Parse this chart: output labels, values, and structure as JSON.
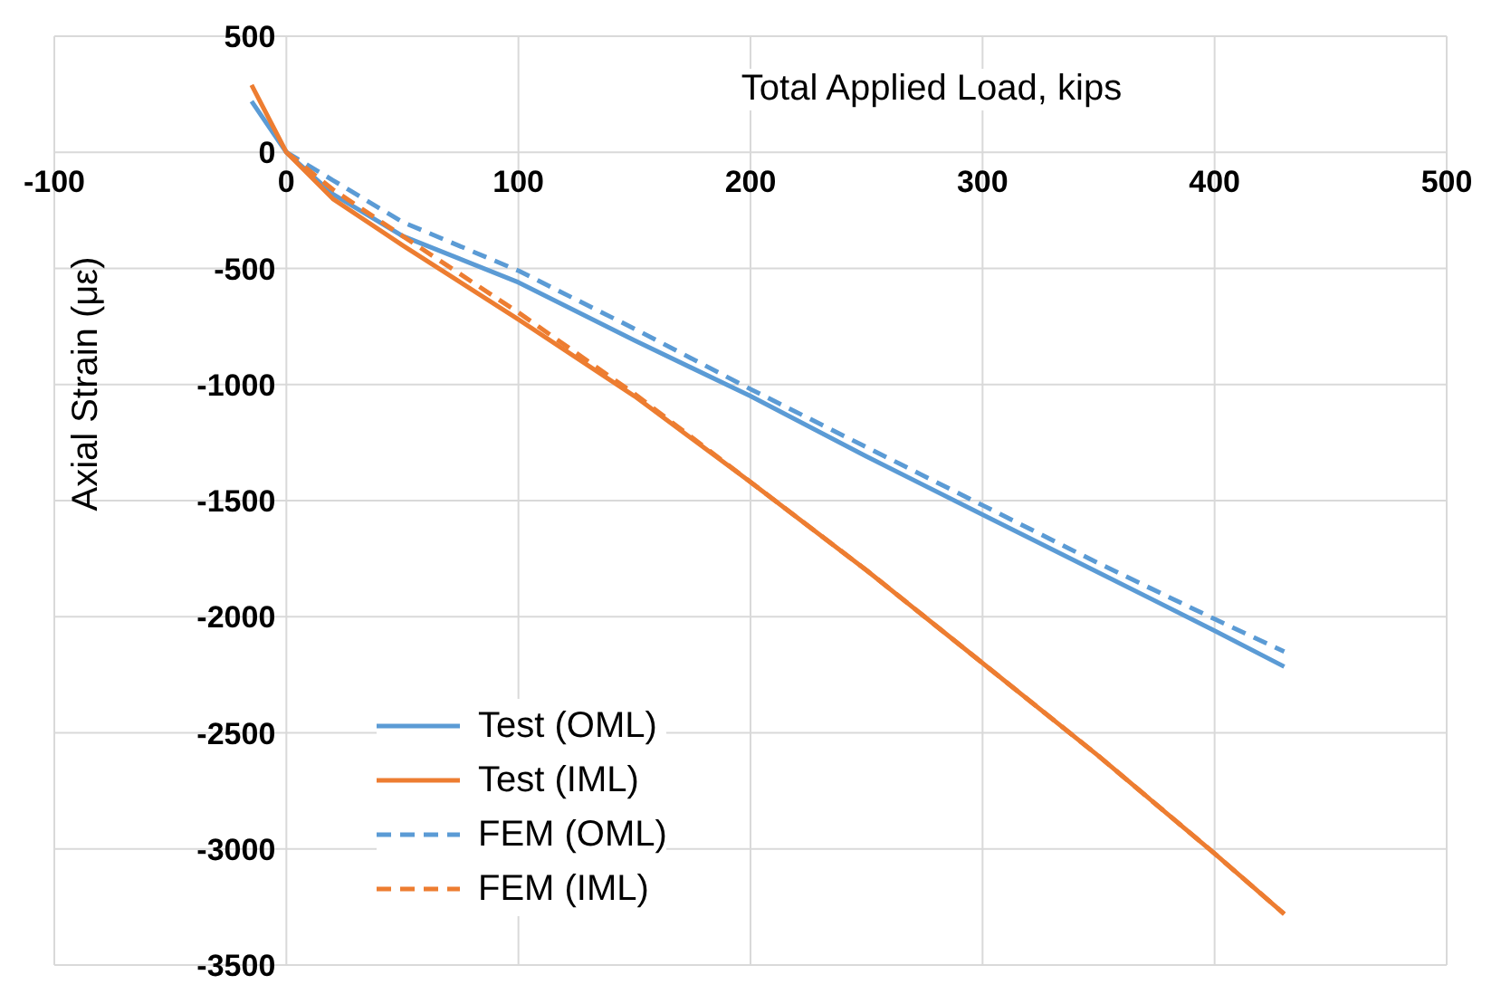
{
  "chart_data": {
    "type": "line",
    "xlabel": "Total Applied  Load, kips",
    "ylabel": "Axial Strain (με)",
    "xlim": [
      -100,
      500
    ],
    "xticks": [
      -100,
      0,
      100,
      200,
      300,
      400,
      500
    ],
    "ylim": [
      -3500,
      500
    ],
    "yticks": [
      -3500,
      -3000,
      -2500,
      -2000,
      -1500,
      -1000,
      -500,
      0,
      500
    ],
    "grid": true,
    "legend": "bottom left",
    "marker": "none",
    "series": [
      {
        "name": "Test (OML)",
        "color": "#5b9bd5",
        "line_style": "solid",
        "x": [
          -15,
          0,
          20,
          50,
          100,
          150,
          200,
          250,
          300,
          350,
          400,
          430
        ],
        "values": [
          220,
          0,
          -180,
          -360,
          -560,
          -810,
          -1050,
          -1310,
          -1560,
          -1810,
          -2060,
          -2215
        ]
      },
      {
        "name": "Test (IML)",
        "color": "#ed7d31",
        "line_style": "solid",
        "x": [
          -15,
          0,
          20,
          50,
          100,
          150,
          200,
          250,
          300,
          350,
          400,
          430
        ],
        "values": [
          290,
          0,
          -200,
          -400,
          -720,
          -1050,
          -1420,
          -1800,
          -2200,
          -2600,
          -3020,
          -3280
        ]
      },
      {
        "name": "FEM (OML)",
        "color": "#5b9bd5",
        "line_style": "dashed",
        "x": [
          0,
          20,
          50,
          100,
          150,
          200,
          250,
          300,
          350,
          400,
          430
        ],
        "values": [
          0,
          -120,
          -300,
          -510,
          -760,
          -1020,
          -1270,
          -1520,
          -1770,
          -2010,
          -2150
        ]
      },
      {
        "name": "FEM (IML)",
        "color": "#ed7d31",
        "line_style": "dashed",
        "x": [
          0,
          20,
          50,
          100,
          150,
          200,
          250,
          300,
          350,
          400,
          430
        ],
        "values": [
          0,
          -160,
          -360,
          -690,
          -1040,
          -1420,
          -1800,
          -2200,
          -2600,
          -3020,
          -3280
        ]
      }
    ]
  }
}
